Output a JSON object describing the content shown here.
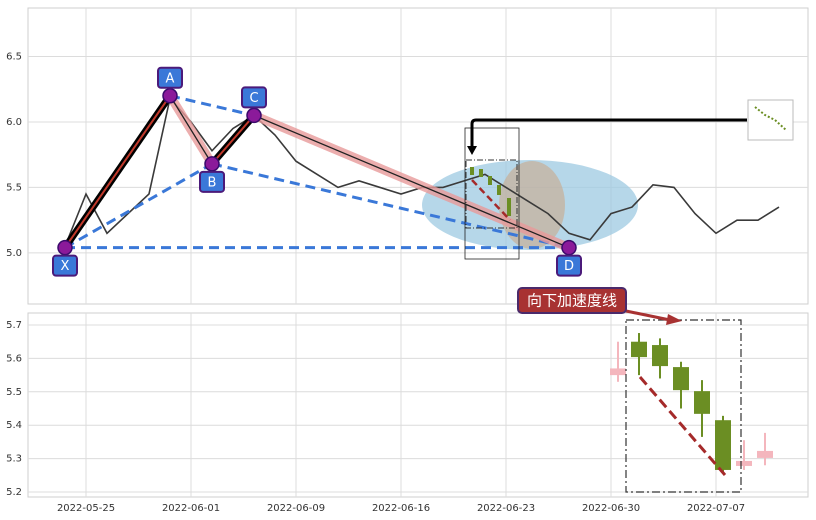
{
  "chart_data": [
    {
      "type": "line",
      "categories": [
        "2022-05-24",
        "2022-05-25",
        "2022-05-26",
        "2022-05-27",
        "2022-05-30",
        "2022-05-31",
        "2022-06-01",
        "2022-06-02",
        "2022-06-06",
        "2022-06-07",
        "2022-06-08",
        "2022-06-09",
        "2022-06-10",
        "2022-06-13",
        "2022-06-14",
        "2022-06-15",
        "2022-06-16",
        "2022-06-17",
        "2022-06-20",
        "2022-06-21",
        "2022-06-22",
        "2022-06-23",
        "2022-06-24",
        "2022-06-27",
        "2022-06-28",
        "2022-06-29",
        "2022-06-30",
        "2022-07-01",
        "2022-07-04",
        "2022-07-05",
        "2022-07-06",
        "2022-07-07",
        "2022-07-08",
        "2022-07-11",
        "2022-07-12"
      ],
      "values": [
        5.05,
        5.45,
        5.15,
        5.3,
        5.45,
        6.18,
        6.0,
        5.78,
        5.95,
        6.05,
        5.9,
        5.7,
        5.6,
        5.5,
        5.55,
        5.5,
        5.45,
        5.5,
        5.5,
        5.55,
        5.6,
        5.5,
        5.4,
        5.3,
        5.15,
        5.1,
        5.3,
        5.35,
        5.52,
        5.5,
        5.3,
        5.15,
        5.25,
        5.25,
        5.35
      ],
      "color": "#3a3a3a",
      "ylim": [
        4.61,
        6.87
      ],
      "yticks": [
        {
          "value": 5,
          "label": "5.0"
        },
        5.5,
        {
          "value": 6,
          "label": "6.0"
        },
        6.5
      ],
      "grid": true,
      "pattern": [
        {
          "label": "X",
          "x": "2022-05-24",
          "value": 5.04
        },
        {
          "label": "A",
          "x": "2022-05-31",
          "value": 6.2
        },
        {
          "label": "B",
          "x": "2022-06-02",
          "value": 5.68
        },
        {
          "label": "C",
          "x": "2022-06-07",
          "value": 6.05
        },
        {
          "label": "D",
          "x": "2022-06-28",
          "value": 5.04
        }
      ]
    },
    {
      "type": "candlestick",
      "categories": [
        "2022-06-30",
        "2022-07-01",
        "2022-07-04",
        "2022-07-05",
        "2022-07-06",
        "2022-07-07",
        "2022-07-08",
        "2022-07-11"
      ],
      "open": [
        5.55,
        5.65,
        5.64,
        5.574,
        5.502,
        5.415,
        5.278,
        5.302
      ],
      "high": [
        5.65,
        5.676,
        5.66,
        5.59,
        5.535,
        5.428,
        5.355,
        5.377
      ],
      "low": [
        5.53,
        5.55,
        5.54,
        5.45,
        5.365,
        5.254,
        5.266,
        5.28
      ],
      "close": [
        5.57,
        5.604,
        5.577,
        5.505,
        5.434,
        5.266,
        5.293,
        5.323
      ],
      "up_color": "#f4b6bd",
      "down_color": "#6b8e23",
      "ylim": [
        5.185,
        5.736
      ],
      "yticks": [
        5.2,
        5.3,
        5.4,
        5.5,
        5.6,
        5.7
      ],
      "xticks": [
        "2022-05-25",
        "2022-06-01",
        "2022-06-09",
        "2022-06-16",
        "2022-06-23",
        "2022-06-30",
        "2022-07-07"
      ],
      "grid": true,
      "annotation": "向下加速度线"
    }
  ]
}
